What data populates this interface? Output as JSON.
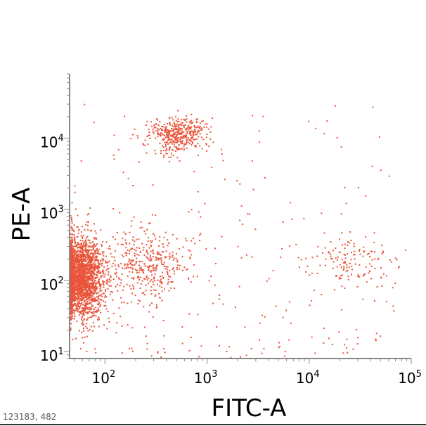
{
  "chart_data": {
    "type": "scatter",
    "title": "",
    "xlabel": "FITC-A",
    "ylabel": "PE-A",
    "x_scale": "log",
    "y_scale": "log",
    "xlim": [
      45,
      100000
    ],
    "ylim": [
      8,
      80000
    ],
    "x_ticks": [
      {
        "value": 100,
        "base": "10",
        "exp": "2"
      },
      {
        "value": 1000,
        "base": "10",
        "exp": "3"
      },
      {
        "value": 10000,
        "base": "10",
        "exp": "4"
      },
      {
        "value": 100000,
        "base": "10",
        "exp": "5"
      }
    ],
    "y_ticks": [
      {
        "value": 10,
        "base": "10",
        "exp": "1"
      },
      {
        "value": 100,
        "base": "10",
        "exp": "2"
      },
      {
        "value": 1000,
        "base": "10",
        "exp": "3"
      },
      {
        "value": 10000,
        "base": "10",
        "exp": "4"
      }
    ],
    "grid": false,
    "legend": "none",
    "point_color": "#E8553A",
    "clusters": [
      {
        "center": [
          55,
          110
        ],
        "spread": [
          0.12,
          0.28
        ],
        "count": 2600
      },
      {
        "center": [
          520,
          11000
        ],
        "spread": [
          0.14,
          0.12
        ],
        "count": 420
      },
      {
        "center": [
          250,
          180
        ],
        "spread": [
          0.22,
          0.25
        ],
        "count": 380
      },
      {
        "center": [
          25000,
          180
        ],
        "spread": [
          0.22,
          0.18
        ],
        "count": 130
      }
    ],
    "scatter_noise": {
      "xlim": [
        45,
        70000
      ],
      "ylim": [
        8,
        30000
      ],
      "count": 260
    },
    "footer": "123183, 482"
  }
}
